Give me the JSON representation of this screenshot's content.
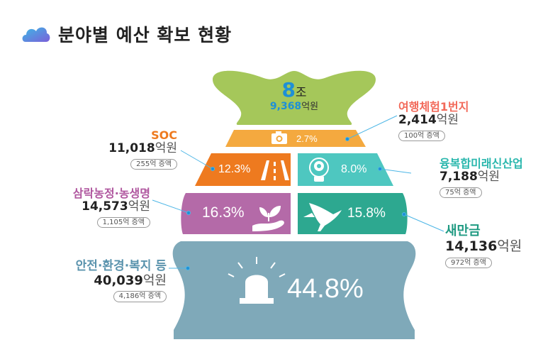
{
  "title": "분야별 예산 확보 현황",
  "colors": {
    "bag_top": "#a5c75a",
    "strip": "#f4a93f",
    "soc": "#ee7a1f",
    "industry": "#4ec7c0",
    "agri": "#b46aa8",
    "saemangeum": "#2da890",
    "safety": "#7fa9b9"
  },
  "total": {
    "big": "8",
    "jo": "조",
    "sub": "9,368",
    "unit": "억원"
  },
  "chart_data": {
    "type": "pie",
    "categories": [
      "안전·환경·복지 등",
      "삼락농정·농생명",
      "새만금",
      "SOC",
      "융복합미래신산업",
      "여행체험1번지"
    ],
    "values": [
      44.8,
      16.3,
      15.8,
      12.3,
      8.0,
      2.7
    ],
    "amounts": [
      "40,039",
      "14,573",
      "14,136",
      "11,018",
      "7,188",
      "2,414"
    ],
    "increases": [
      "4,186억 증액",
      "1,105억 증액",
      "972억 증액",
      "255억 증액",
      "75억 증액",
      "100억 증액"
    ],
    "pct_labels": [
      "44.8%",
      "16.3%",
      "15.8%",
      "12.3%",
      "8.0%",
      "2.7%"
    ],
    "unit": "억원"
  },
  "icons": [
    "cloud-icon",
    "camera-icon",
    "road-icon",
    "brain-bulb-icon",
    "sprout-hand-icon",
    "crane-icon",
    "siren-icon"
  ]
}
